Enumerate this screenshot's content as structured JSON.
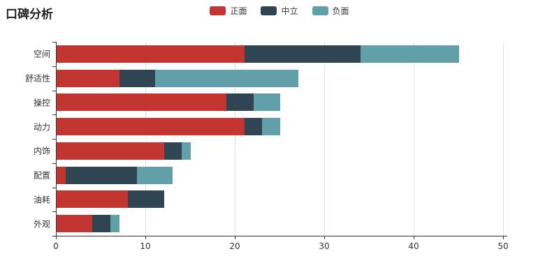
{
  "title": "口碑分析",
  "chart_data": {
    "type": "bar",
    "orientation": "horizontal",
    "stacked": true,
    "title": "口碑分析",
    "categories": [
      "空间",
      "舒适性",
      "操控",
      "动力",
      "内饰",
      "配置",
      "油耗",
      "外观"
    ],
    "series": [
      {
        "name": "正面",
        "color": "#c23531",
        "values": [
          21,
          7,
          19,
          21,
          12,
          1,
          8,
          4
        ]
      },
      {
        "name": "中立",
        "color": "#2f4554",
        "values": [
          13,
          4,
          3,
          2,
          2,
          8,
          4,
          2
        ]
      },
      {
        "name": "负面",
        "color": "#61a0a8",
        "values": [
          11,
          16,
          3,
          2,
          1,
          4,
          0,
          1
        ]
      }
    ],
    "totals": [
      45,
      27,
      25,
      25,
      15,
      13,
      12,
      7
    ],
    "xlim": [
      0,
      50
    ],
    "x_ticks": [
      0,
      10,
      20,
      30,
      40,
      50
    ],
    "grid": true,
    "legend_position": "top-center",
    "xlabel": "",
    "ylabel": ""
  },
  "colors": {
    "positive": "#c23531",
    "neutral": "#2f4554",
    "negative": "#61a0a8",
    "axis": "#333333",
    "gridline": "#e0e0e6",
    "text": "#333333",
    "background": "#ffffff"
  }
}
